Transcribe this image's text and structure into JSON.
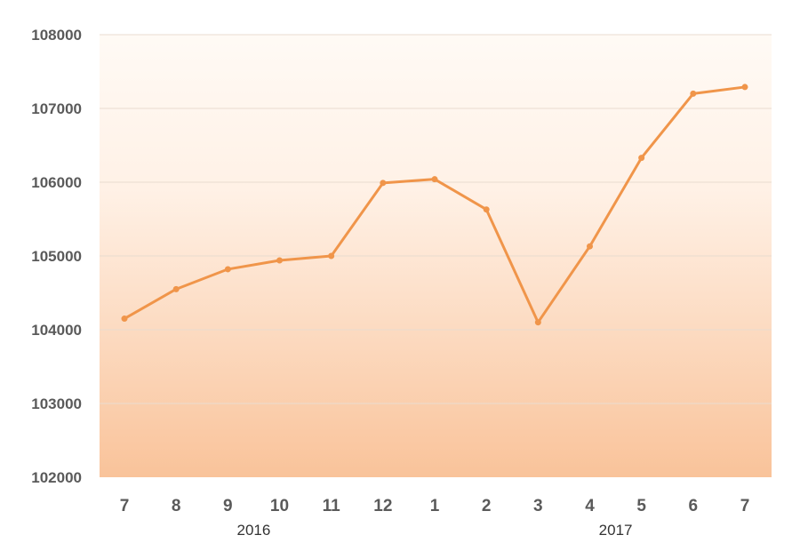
{
  "chart_data": {
    "type": "line",
    "title": "",
    "xlabel": "",
    "ylabel": "",
    "categories": [
      "7",
      "8",
      "9",
      "10",
      "11",
      "12",
      "1",
      "2",
      "3",
      "4",
      "5",
      "6",
      "7"
    ],
    "year_labels": [
      {
        "label": "2016",
        "category_index": 2.5
      },
      {
        "label": "2017",
        "category_index": 9.5
      }
    ],
    "series": [
      {
        "values": [
          104150,
          104550,
          104820,
          104940,
          105000,
          105990,
          106040,
          105630,
          104100,
          105130,
          106330,
          107200,
          107290
        ]
      }
    ],
    "ylim": [
      102000,
      108000
    ],
    "yticks": [
      "102000",
      "103000",
      "104000",
      "105000",
      "106000",
      "107000",
      "108000"
    ],
    "grid": true,
    "legend": "none",
    "colors": {
      "line": "#f0954a",
      "fill_top": "#fffaf5",
      "fill_bottom": "#f9c39a",
      "grid": "#e9dcd0"
    }
  }
}
